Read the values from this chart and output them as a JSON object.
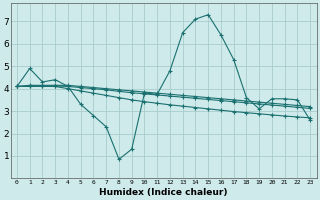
{
  "xlabel": "Humidex (Indice chaleur)",
  "ylabel": "",
  "bg_color": "#ceeaea",
  "grid_color": "#aacccc",
  "line_color": "#1a7070",
  "xlim": [
    -0.5,
    23.5
  ],
  "ylim": [
    0,
    7.8
  ],
  "xticks": [
    0,
    1,
    2,
    3,
    4,
    5,
    6,
    7,
    8,
    9,
    10,
    11,
    12,
    13,
    14,
    15,
    16,
    17,
    18,
    19,
    20,
    21,
    22,
    23
  ],
  "yticks": [
    1,
    2,
    3,
    4,
    5,
    6,
    7
  ],
  "series": [
    {
      "x": [
        0,
        1,
        2,
        3,
        4,
        5,
        6,
        7,
        8,
        9,
        10,
        11,
        12,
        13,
        14,
        15,
        16,
        17,
        18,
        19,
        20,
        21,
        22,
        23
      ],
      "y": [
        4.1,
        4.9,
        4.3,
        4.4,
        4.1,
        3.3,
        2.8,
        2.3,
        0.85,
        1.3,
        3.8,
        3.75,
        4.8,
        6.5,
        7.1,
        7.3,
        6.4,
        5.3,
        3.6,
        3.1,
        3.55,
        3.55,
        3.5,
        2.6
      ]
    },
    {
      "x": [
        0,
        1,
        2,
        3,
        4,
        5,
        6,
        7,
        8,
        9,
        10,
        11,
        12,
        13,
        14,
        15,
        16,
        17,
        18,
        19,
        20,
        21,
        22,
        23
      ],
      "y": [
        4.1,
        4.15,
        4.15,
        4.15,
        4.15,
        4.1,
        4.05,
        4.0,
        3.95,
        3.9,
        3.85,
        3.8,
        3.75,
        3.7,
        3.65,
        3.6,
        3.55,
        3.5,
        3.45,
        3.4,
        3.35,
        3.3,
        3.25,
        3.2
      ]
    },
    {
      "x": [
        0,
        1,
        2,
        3,
        4,
        5,
        6,
        7,
        8,
        9,
        10,
        11,
        12,
        13,
        14,
        15,
        16,
        17,
        18,
        19,
        20,
        21,
        22,
        23
      ],
      "y": [
        4.1,
        4.12,
        4.12,
        4.12,
        4.1,
        4.05,
        4.0,
        3.95,
        3.88,
        3.82,
        3.77,
        3.72,
        3.67,
        3.62,
        3.57,
        3.52,
        3.47,
        3.42,
        3.37,
        3.32,
        3.27,
        3.22,
        3.17,
        3.12
      ]
    },
    {
      "x": [
        0,
        1,
        2,
        3,
        4,
        5,
        6,
        7,
        8,
        9,
        10,
        11,
        12,
        13,
        14,
        15,
        16,
        17,
        18,
        19,
        20,
        21,
        22,
        23
      ],
      "y": [
        4.1,
        4.1,
        4.1,
        4.1,
        4.0,
        3.9,
        3.8,
        3.7,
        3.6,
        3.5,
        3.42,
        3.35,
        3.28,
        3.22,
        3.16,
        3.1,
        3.04,
        2.98,
        2.93,
        2.88,
        2.83,
        2.78,
        2.74,
        2.7
      ]
    }
  ]
}
